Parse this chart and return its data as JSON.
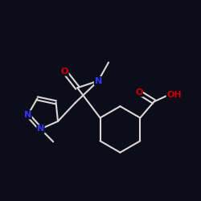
{
  "bg_color": "#0d0d1a",
  "bond_color": "#d8d8d8",
  "atom_colors": {
    "N": "#3333ff",
    "O": "#cc0000",
    "C": "#d8d8d8"
  },
  "bond_lw": 1.5,
  "font_size": 8.5
}
